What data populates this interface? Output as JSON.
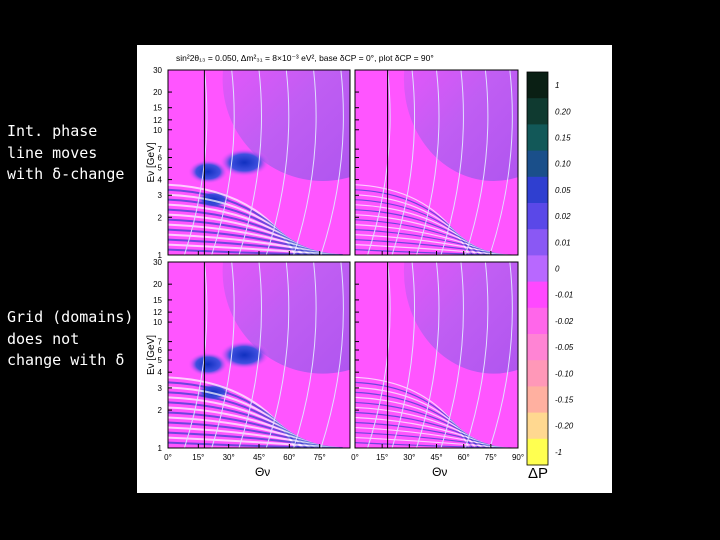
{
  "notes": [
    {
      "lines": [
        "Int. phase",
        "line moves",
        "with  δ-change"
      ]
    },
    {
      "lines": [
        "Grid  (domains)",
        "does not",
        "change with  δ"
      ]
    }
  ],
  "figure": {
    "header": "sin²2θ₁₃ = 0.050,  Δm²₃₁ = 8×10⁻³ eV²,  base δCP = 0°,  plot δCP = 90°",
    "y_label": "Eν [GeV]",
    "x_label": "Θν",
    "yticks": [
      1,
      2,
      3,
      4,
      5,
      6,
      7,
      10,
      12,
      15,
      20,
      30
    ],
    "ylim": [
      1,
      30
    ],
    "xlim": [
      0,
      90
    ],
    "xticks_left": [
      {
        "value": 0,
        "label": "0°"
      },
      {
        "value": 15,
        "label": "15°"
      },
      {
        "value": 30,
        "label": "30°"
      },
      {
        "value": 45,
        "label": "45°"
      },
      {
        "value": 60,
        "label": "60°"
      },
      {
        "value": 75,
        "label": "75°"
      }
    ],
    "xticks_right": [
      {
        "value": 0,
        "label": "0°"
      },
      {
        "value": 15,
        "label": "15°"
      },
      {
        "value": 30,
        "label": "30°"
      },
      {
        "value": 45,
        "label": "45°"
      },
      {
        "value": 60,
        "label": "60°"
      },
      {
        "value": 75,
        "label": "75°"
      },
      {
        "value": 90,
        "label": "90°"
      }
    ],
    "colorbar": {
      "labels": [
        "1",
        "0.20",
        "0.15",
        "0.10",
        "0.05",
        "0.02",
        "0.01",
        "0",
        "-0.01",
        "-0.02",
        "-0.05",
        "-0.10",
        "-0.15",
        "-0.20",
        "-1"
      ],
      "colors": [
        "#0a1f14",
        "#0f3a30",
        "#125858",
        "#1a4f8a",
        "#2f3fd0",
        "#5a48e8",
        "#8a58f4",
        "#b868ff",
        "#ff48ff",
        "#ff66ea",
        "#ff84d4",
        "#ff98b8",
        "#ffb0a0",
        "#ffd890",
        "#ffff50"
      ],
      "title": "ΔP"
    }
  }
}
